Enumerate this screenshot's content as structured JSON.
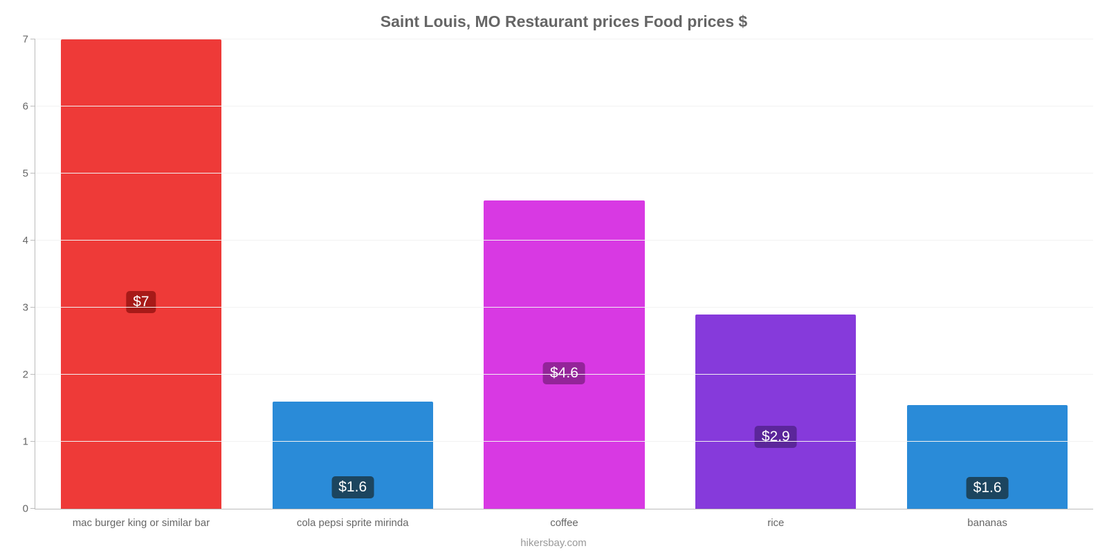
{
  "chart": {
    "type": "bar",
    "title": "Saint Louis, MO Restaurant prices Food prices $",
    "title_fontsize": 23,
    "title_color": "#666666",
    "background_color": "#ffffff",
    "grid_color": "#f2f2f2",
    "axis_line_color": "#bbbbbb",
    "y": {
      "min": 0,
      "max": 7,
      "ticks": [
        0,
        1,
        2,
        3,
        4,
        5,
        6,
        7
      ],
      "tick_color": "#666666",
      "tick_fontsize": 15
    },
    "x": {
      "tick_color": "#666666",
      "tick_fontsize": 15
    },
    "bar_width_pct": 76,
    "value_label_fontsize": 21,
    "value_label_text_color": "#ffffff",
    "series": [
      {
        "category": "mac burger king or similar bar",
        "value": 7.0,
        "display": "$7",
        "bar_color": "#ee3a38",
        "label_bg": "#a71a18",
        "label_pos_pct": 44
      },
      {
        "category": "cola pepsi sprite mirinda",
        "value": 1.6,
        "display": "$1.6",
        "bar_color": "#2a8bd8",
        "label_bg": "#1c455f",
        "label_pos_pct": 20
      },
      {
        "category": "coffee",
        "value": 4.6,
        "display": "$4.6",
        "bar_color": "#d839e3",
        "label_bg": "#932499",
        "label_pos_pct": 44
      },
      {
        "category": "rice",
        "value": 2.9,
        "display": "$2.9",
        "bar_color": "#863adb",
        "label_bg": "#5b269a",
        "label_pos_pct": 37
      },
      {
        "category": "bananas",
        "value": 1.55,
        "display": "$1.6",
        "bar_color": "#2a8bd8",
        "label_bg": "#1c455f",
        "label_pos_pct": 20
      }
    ],
    "credit": "hikersbay.com",
    "credit_color": "#999999",
    "credit_fontsize": 15
  }
}
